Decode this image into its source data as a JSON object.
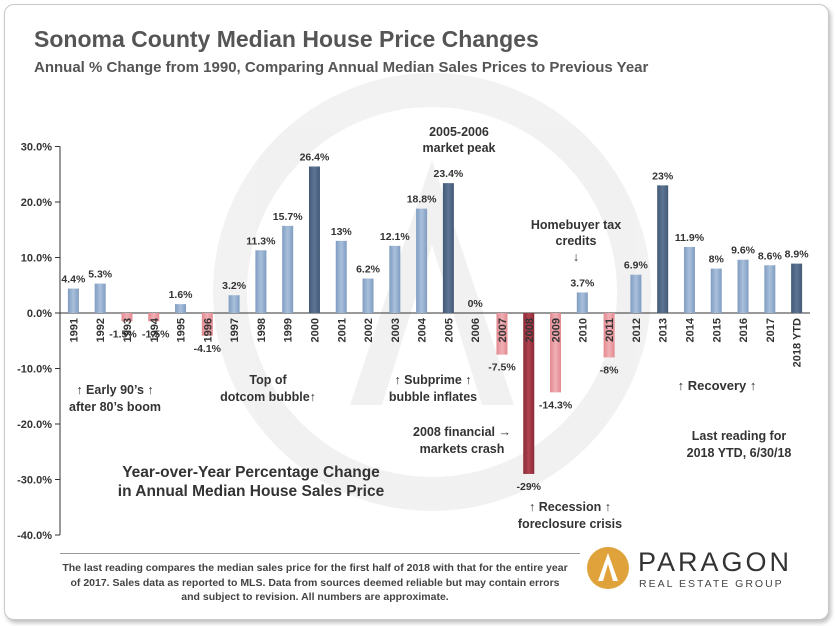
{
  "header": {
    "title": "Sonoma County Median House Price Changes",
    "subtitle": "Annual % Change from 1990, Comparing Annual Median Sales Prices to Previous Year"
  },
  "chart_data": {
    "type": "bar",
    "categories": [
      "1991",
      "1992",
      "1993",
      "1994",
      "1995",
      "1996",
      "1997",
      "1998",
      "1999",
      "2000",
      "2001",
      "2002",
      "2003",
      "2004",
      "2005",
      "2006",
      "2007",
      "2008",
      "2009",
      "2010",
      "2011",
      "2012",
      "2013",
      "2014",
      "2015",
      "2016",
      "2017",
      "2018 YTD"
    ],
    "values": [
      4.4,
      5.3,
      -1.5,
      -1.5,
      1.6,
      -4.1,
      3.2,
      11.3,
      15.7,
      26.4,
      13,
      6.2,
      12.1,
      18.8,
      23.4,
      0,
      -7.5,
      -29,
      -14.3,
      3.7,
      -8,
      6.9,
      23,
      11.9,
      8,
      9.6,
      8.6,
      8.9
    ],
    "value_labels": [
      "4.4%",
      "5.3%",
      "-1.5%",
      "-1.5%",
      "1.6%",
      "-4.1%",
      "3.2%",
      "11.3%",
      "15.7%",
      "26.4%",
      "13%",
      "6.2%",
      "12.1%",
      "18.8%",
      "23.4%",
      "0%",
      "-7.5%",
      "-29%",
      "-14.3%",
      "3.7%",
      "-8%",
      "6.9%",
      "23%",
      "11.9%",
      "8%",
      "9.6%",
      "8.6%",
      "8.9%"
    ],
    "peak_bars": [
      "2000",
      "2005",
      "2013",
      "2018 YTD"
    ],
    "ylim": [
      -40,
      30
    ],
    "yticks": [
      "30.0%",
      "20.0%",
      "10.0%",
      "0.0%",
      "-10.0%",
      "-20.0%",
      "-30.0%",
      "-40.0%"
    ],
    "ytick_values": [
      30,
      20,
      10,
      0,
      -10,
      -20,
      -30,
      -40
    ],
    "grid": false,
    "colors": {
      "positive_bar": "#7f9cc0",
      "peak_bar": "#445a76",
      "negative_bar": "#e2888f",
      "trough_bar": "#8a2a35",
      "axis": "#333333"
    },
    "annotations": {
      "early90s": [
        "↑ Early 90’s ↑",
        "after 80’s boom"
      ],
      "dotcom": [
        "Top of",
        "dotcom bubble↑"
      ],
      "peak": [
        "2005-2006",
        "market peak"
      ],
      "subprime": [
        "↑ Subprime ↑",
        "bubble inflates"
      ],
      "crash": [
        "2008 financial →",
        "markets crash"
      ],
      "taxcredit": [
        "Homebuyer tax",
        "credits",
        "↓"
      ],
      "recession": [
        "↑ Recession ↑",
        "foreclosure crisis"
      ],
      "recovery": [
        "↑  Recovery  ↑"
      ],
      "lastreading": [
        "Last reading for",
        "2018 YTD, 6/30/18"
      ],
      "yoy": [
        "Year-over-Year Percentage Change",
        "in Annual Median House Sales Price"
      ]
    }
  },
  "footer": {
    "footnote": "The last reading compares the median sales price for the first half of 2018 with that for the entire year of 2017.  Sales data as reported to MLS. Data from sources  deemed reliable but may contain errors and subject to revision.  All numbers are approximate.",
    "brand_name": "PARAGON",
    "brand_sub": "REAL ESTATE GROUP",
    "logo_color": "#e0a23a"
  }
}
